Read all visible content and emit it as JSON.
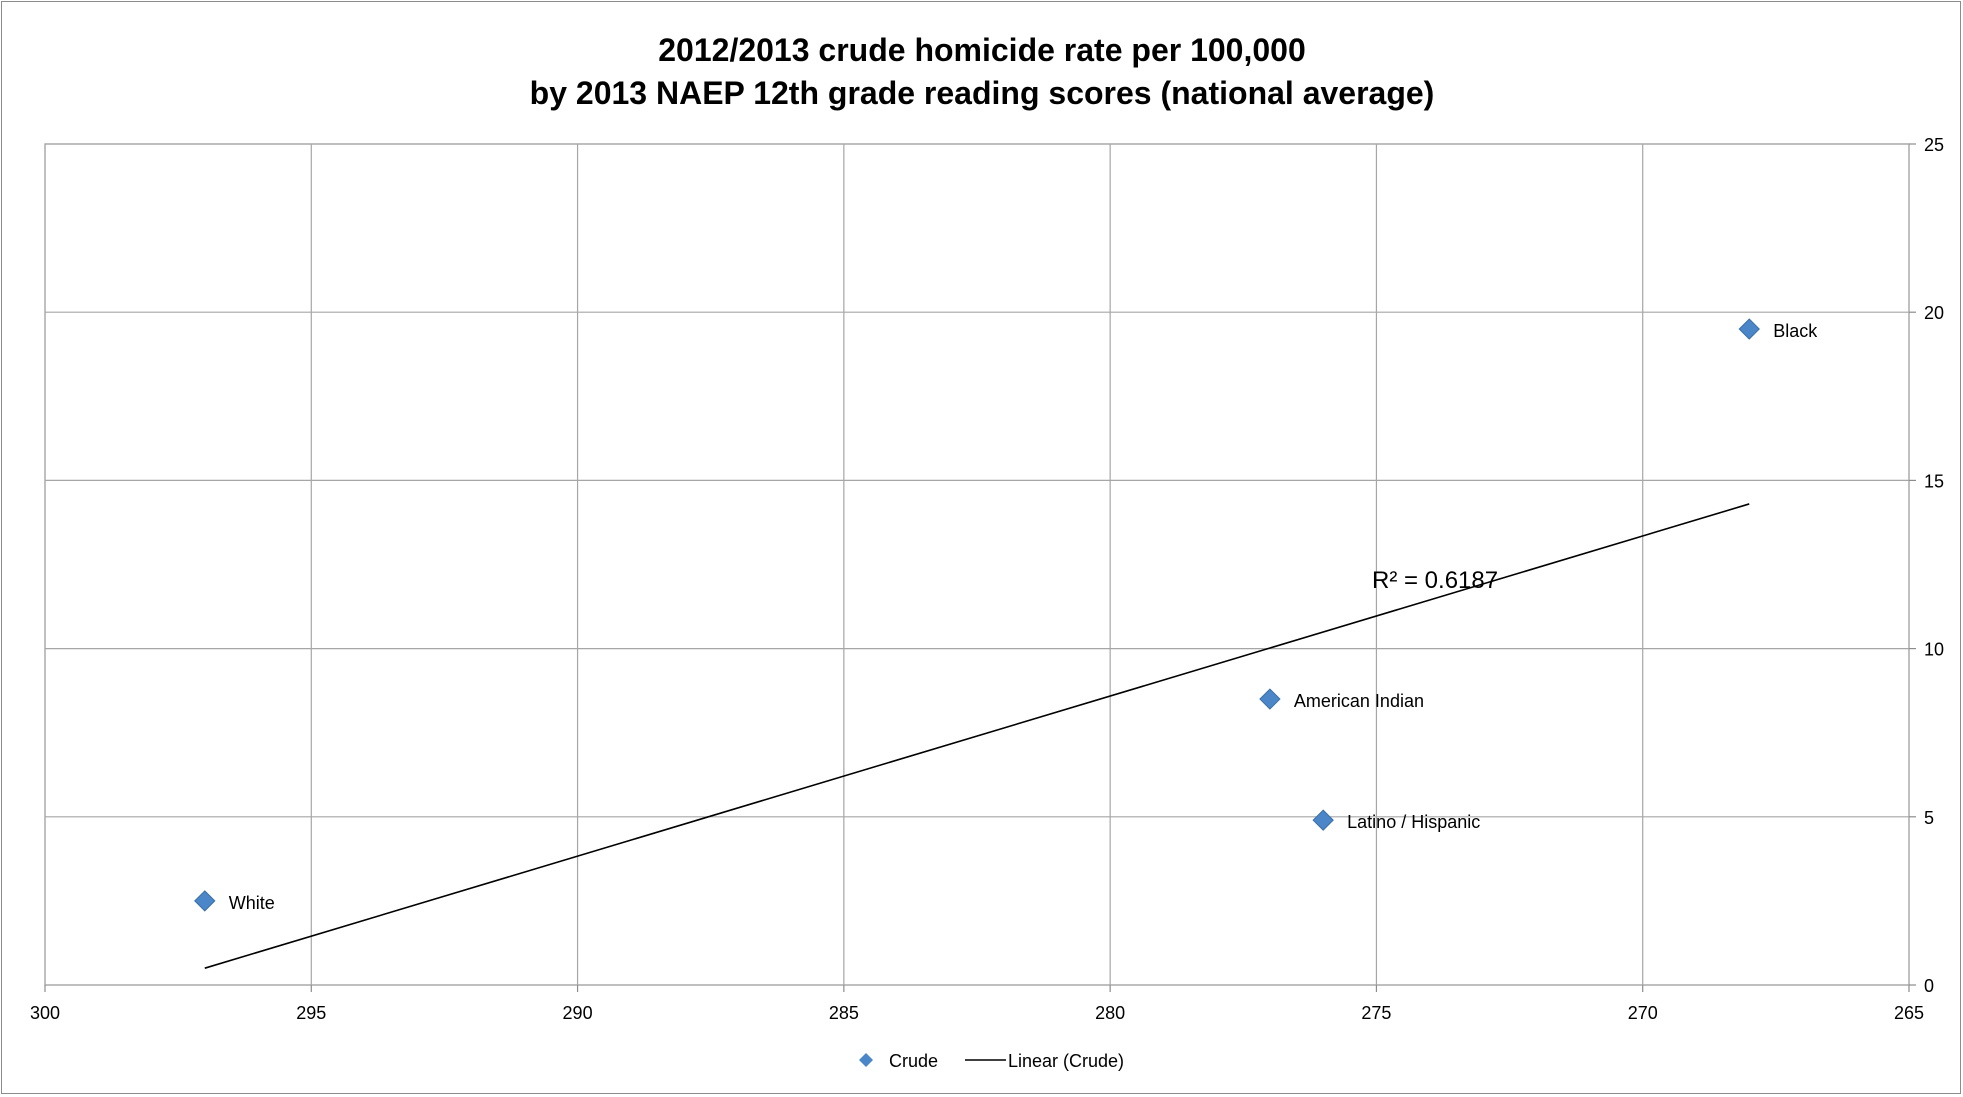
{
  "chart_data": {
    "type": "scatter",
    "title": "2012/2013 crude homicide rate per 100,000",
    "subtitle": "by 2013 NAEP 12th grade reading scores (national average)",
    "xlabel": "",
    "ylabel": "",
    "xlim": [
      300,
      265
    ],
    "x_reversed": true,
    "ylim": [
      0,
      25
    ],
    "x_ticks": [
      300,
      295,
      290,
      285,
      280,
      275,
      270,
      265
    ],
    "y_ticks": [
      0,
      5,
      10,
      15,
      20,
      25
    ],
    "y_axis_side": "right",
    "grid": true,
    "legend_placement": "bottom",
    "series": [
      {
        "name": "Crude",
        "color": "#4a86c8",
        "marker": "diamond",
        "points": [
          {
            "label": "White",
            "x": 297,
            "y": 2.5
          },
          {
            "label": "American Indian",
            "x": 277,
            "y": 8.5
          },
          {
            "label": "Latino / Hispanic",
            "x": 276,
            "y": 4.9
          },
          {
            "label": "Black",
            "x": 268,
            "y": 19.5
          }
        ]
      }
    ],
    "trendline": {
      "name": "Linear (Crude)",
      "color": "#000000",
      "type": "linear",
      "x_start": 297,
      "y_start": 0.5,
      "x_end": 268,
      "y_end": 14.3,
      "annotation": "R² = 0.6187"
    }
  }
}
